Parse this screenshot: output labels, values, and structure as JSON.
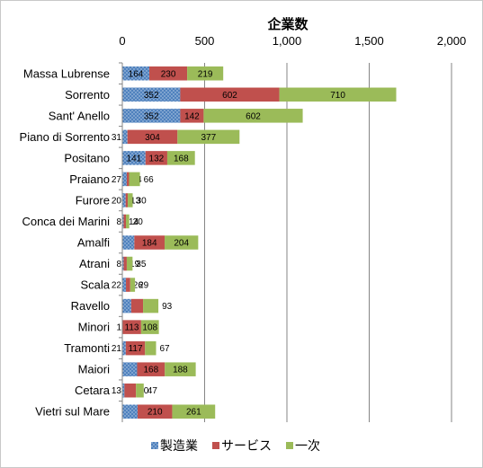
{
  "chart_data": {
    "type": "bar",
    "orientation": "horizontal",
    "stacked": true,
    "title": "企業数",
    "xlim": [
      0,
      2000
    ],
    "xticks": [
      0,
      500,
      1000,
      1500,
      2000
    ],
    "xtick_labels": [
      "0",
      "500",
      "1,000",
      "1,500",
      "2,000"
    ],
    "axis_position": "top",
    "grid": true,
    "legend_position": "bottom",
    "categories": [
      "Massa Lubrense",
      "Sorrento",
      "Sant' Anello",
      "Piano di Sorrento",
      "Positano",
      "Praiano",
      "Furore",
      "Conca dei Marini",
      "Amalfi",
      "Atrani",
      "Scala",
      "Ravello",
      "Minori",
      "Tramonti",
      "Maiori",
      "Cetara",
      "Vietri sul Mare"
    ],
    "series": [
      {
        "name": "製造業",
        "color": "#4f81bd",
        "pattern": "dots",
        "values": [
          164,
          352,
          352,
          31,
          141,
          27,
          20,
          8,
          73,
          8,
          22,
          54,
          1,
          21,
          90,
          13,
          93
        ],
        "labels": [
          "164",
          "352",
          "352",
          "31",
          "141",
          "27",
          "20",
          "8",
          "73",
          "8",
          "22",
          "54",
          "1",
          "21",
          "90",
          "13",
          "93"
        ]
      },
      {
        "name": "サービス",
        "color": "#c0504d",
        "pattern": "solid",
        "values": [
          230,
          602,
          142,
          304,
          132,
          14,
          13,
          14,
          184,
          19,
          26,
          72,
          113,
          117,
          168,
          70,
          210
        ],
        "labels": [
          "230",
          "602",
          "142",
          "304",
          "132",
          "14",
          "13",
          "14",
          "184",
          "19",
          "26",
          "72",
          "113",
          "117",
          "168",
          "70",
          "210"
        ]
      },
      {
        "name": "一次",
        "color": "#9bbb59",
        "pattern": "solid",
        "values": [
          219,
          710,
          602,
          377,
          168,
          66,
          30,
          20,
          204,
          35,
          29,
          93,
          108,
          67,
          188,
          47,
          261
        ],
        "labels": [
          "219",
          "710",
          "602",
          "377",
          "168",
          "66",
          "30",
          "20",
          "204",
          "35",
          "29",
          "93",
          "108",
          "67",
          "188",
          "47",
          "261"
        ]
      }
    ]
  }
}
